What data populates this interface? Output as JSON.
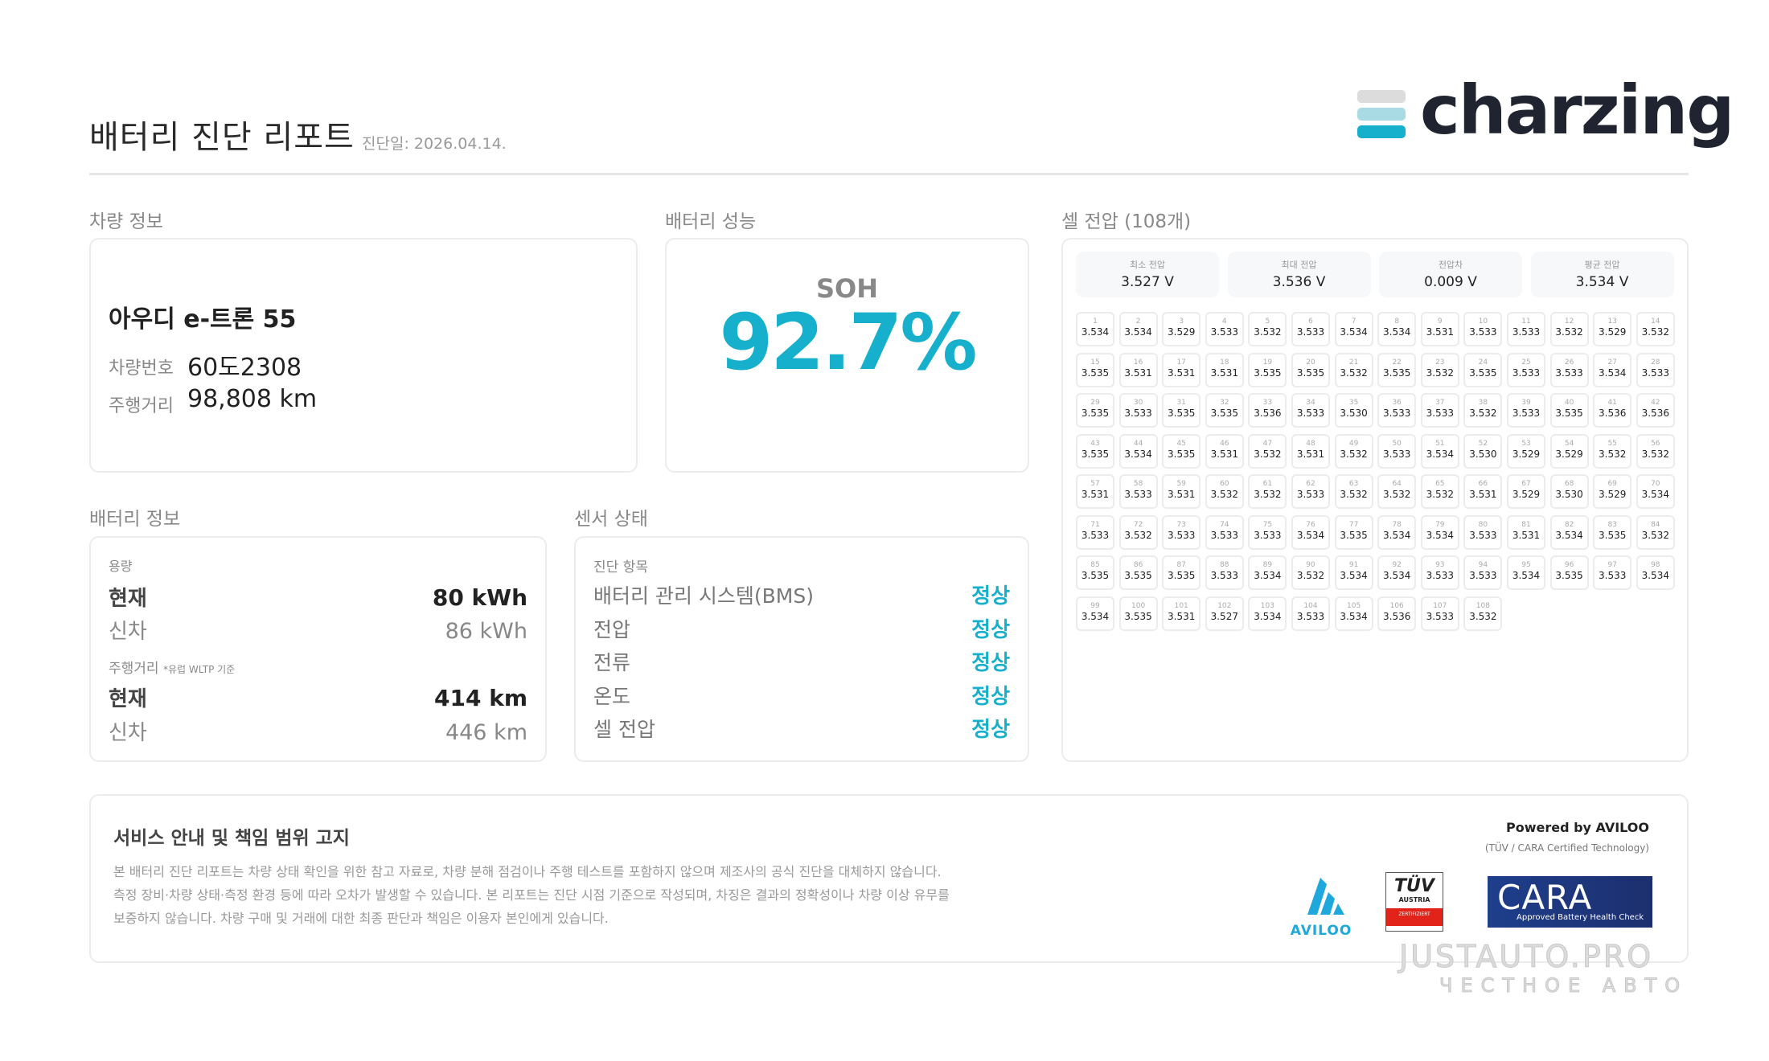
{
  "header": {
    "title": "배터리 진단 리포트",
    "date": "진단일: 2026.04.14.",
    "logo_text": "charzing",
    "logo_colors": [
      "#dcdcdc",
      "#a8dbe4",
      "#16b0cc"
    ]
  },
  "vehicle": {
    "section": "차량 정보",
    "model": "아우디 e-트론 55",
    "plate_label": "차량번호",
    "plate": "60도2308",
    "mileage_label": "주행거리",
    "mileage": "98,808 km"
  },
  "performance": {
    "section": "배터리 성능",
    "soh_label": "SOH",
    "soh": "92.7%",
    "accent": "#16b0cc"
  },
  "battery": {
    "section": "배터리 정보",
    "capacity_label": "용량",
    "current_label": "현재",
    "new_label": "신차",
    "capacity_current": "80 kWh",
    "capacity_new": "86 kWh",
    "range_label": "주행거리",
    "range_note": "*유럽 WLTP 기준",
    "range_current": "414 km",
    "range_new": "446 km"
  },
  "sensors": {
    "section": "센서 상태",
    "header": "진단 항목",
    "items": [
      {
        "label": "배터리 관리 시스템(BMS)",
        "status": "정상"
      },
      {
        "label": "전압",
        "status": "정상"
      },
      {
        "label": "전류",
        "status": "정상"
      },
      {
        "label": "온도",
        "status": "정상"
      },
      {
        "label": "셀 전압",
        "status": "정상"
      }
    ]
  },
  "cells": {
    "section": "셀 전압 (108개)",
    "summary": [
      {
        "label": "최소 전압",
        "value": "3.527 V"
      },
      {
        "label": "최대 전압",
        "value": "3.536 V"
      },
      {
        "label": "전압차",
        "value": "0.009 V"
      },
      {
        "label": "평균 전압",
        "value": "3.534 V"
      }
    ],
    "voltages": [
      "3.534",
      "3.534",
      "3.529",
      "3.533",
      "3.532",
      "3.533",
      "3.534",
      "3.534",
      "3.531",
      "3.533",
      "3.533",
      "3.532",
      "3.529",
      "3.532",
      "3.535",
      "3.531",
      "3.531",
      "3.531",
      "3.535",
      "3.535",
      "3.532",
      "3.535",
      "3.532",
      "3.535",
      "3.533",
      "3.533",
      "3.534",
      "3.533",
      "3.535",
      "3.533",
      "3.535",
      "3.535",
      "3.536",
      "3.533",
      "3.530",
      "3.533",
      "3.533",
      "3.532",
      "3.533",
      "3.535",
      "3.536",
      "3.536",
      "3.535",
      "3.534",
      "3.535",
      "3.531",
      "3.532",
      "3.531",
      "3.532",
      "3.533",
      "3.534",
      "3.530",
      "3.529",
      "3.529",
      "3.532",
      "3.532",
      "3.531",
      "3.533",
      "3.531",
      "3.532",
      "3.532",
      "3.533",
      "3.532",
      "3.532",
      "3.532",
      "3.531",
      "3.529",
      "3.530",
      "3.529",
      "3.534",
      "3.533",
      "3.532",
      "3.533",
      "3.533",
      "3.533",
      "3.534",
      "3.535",
      "3.534",
      "3.534",
      "3.533",
      "3.531",
      "3.534",
      "3.535",
      "3.532",
      "3.535",
      "3.535",
      "3.535",
      "3.533",
      "3.534",
      "3.532",
      "3.534",
      "3.534",
      "3.533",
      "3.533",
      "3.534",
      "3.535",
      "3.533",
      "3.534",
      "3.534",
      "3.535",
      "3.531",
      "3.527",
      "3.534",
      "3.533",
      "3.534",
      "3.536",
      "3.533",
      "3.532"
    ]
  },
  "footer": {
    "title": "서비스 안내 및 책임 범위 고지",
    "lines": [
      "본 배터리 진단 리포트는 차량 상태 확인을 위한 참고 자료로, 차량 분해 점검이나 주행 테스트를 포함하지 않으며 제조사의 공식 진단을 대체하지 않습니다.",
      "측정 장비·차량 상태·측정 환경 등에 따라 오차가 발생할 수 있습니다. 본 리포트는 진단 시점 기준으로 작성되며, 차징은 결과의 정확성이나 차량 이상 유무를",
      "보증하지 않습니다. 차량 구매 및 거래에 대한 최종 판단과 책임은 이용자 본인에게 있습니다."
    ],
    "powered": "Powered by AVILOO",
    "certified": "(TÜV / CARA Certified Technology)",
    "aviloo": "AVILOO",
    "tuv": "TÜV",
    "tuv_sub": "AUSTRIA",
    "tuv_band": "ZERTIFIZIERT",
    "cara": "CARA",
    "cara_sub": "Approved Battery Health Check"
  },
  "watermark": {
    "text": "JUSTAUTO.PRO",
    "sub": "ЧЕСТНОЕ АВТО"
  }
}
